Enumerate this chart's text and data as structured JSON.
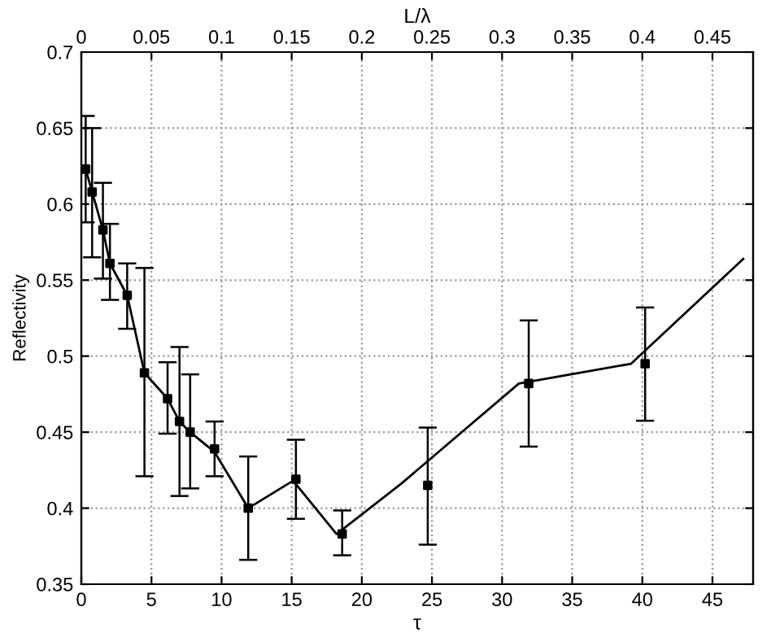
{
  "chart_data": {
    "type": "line",
    "xlabel": "τ",
    "ylabel": "Reflectivity",
    "x2label": "L/λ",
    "xlim": [
      0,
      47.9
    ],
    "xticks": [
      0,
      5,
      10,
      15,
      20,
      25,
      30,
      35,
      40,
      45
    ],
    "ylim": [
      0.35,
      0.7
    ],
    "yticks": [
      0.35,
      0.4,
      0.45,
      0.5,
      0.55,
      0.6,
      0.65,
      0.7
    ],
    "x2lim": [
      0,
      0.479
    ],
    "x2ticks": [
      0,
      0.05,
      0.1,
      0.15,
      0.2,
      0.25,
      0.3,
      0.35,
      0.4,
      0.45
    ],
    "grid": true,
    "legend": false,
    "series": [
      {
        "color": "#000000",
        "line_style": "solid",
        "marker": "none",
        "x": [
          0.31,
          0.77,
          1.54,
          2.04,
          3.27,
          4.5,
          6.15,
          7.0,
          7.76,
          9.5,
          11.9,
          15.1,
          18.2,
          22.8,
          31.2,
          39.2,
          47.2
        ],
        "values": [
          0.623,
          0.608,
          0.583,
          0.561,
          0.54,
          0.489,
          0.472,
          0.457,
          0.45,
          0.437,
          0.4,
          0.418,
          0.383,
          0.416,
          0.482,
          0.495,
          0.564
        ]
      },
      {
        "type": "scatter",
        "color": "#000000",
        "marker": "square",
        "x": [
          0.31,
          0.77,
          1.54,
          2.04,
          3.27,
          4.5,
          6.15,
          7.0,
          7.76,
          9.5,
          11.9,
          15.3,
          18.6,
          24.7,
          31.9,
          40.2
        ],
        "values": [
          0.623,
          0.608,
          0.583,
          0.561,
          0.54,
          0.489,
          0.472,
          0.457,
          0.45,
          0.439,
          0.4,
          0.419,
          0.383,
          0.415,
          0.482,
          0.495
        ],
        "errors": [
          [
            0.588,
            0.658
          ],
          [
            0.565,
            0.65
          ],
          [
            0.551,
            0.614
          ],
          [
            0.537,
            0.587
          ],
          [
            0.518,
            0.561
          ],
          [
            0.421,
            0.558
          ],
          [
            0.449,
            0.496
          ],
          [
            0.408,
            0.506
          ],
          [
            0.413,
            0.488
          ],
          [
            0.421,
            0.457
          ],
          [
            0.366,
            0.434
          ],
          [
            0.393,
            0.445
          ],
          [
            0.369,
            0.3985
          ],
          [
            0.376,
            0.453
          ],
          [
            0.4405,
            0.5235
          ],
          [
            0.4575,
            0.532
          ]
        ]
      }
    ]
  }
}
